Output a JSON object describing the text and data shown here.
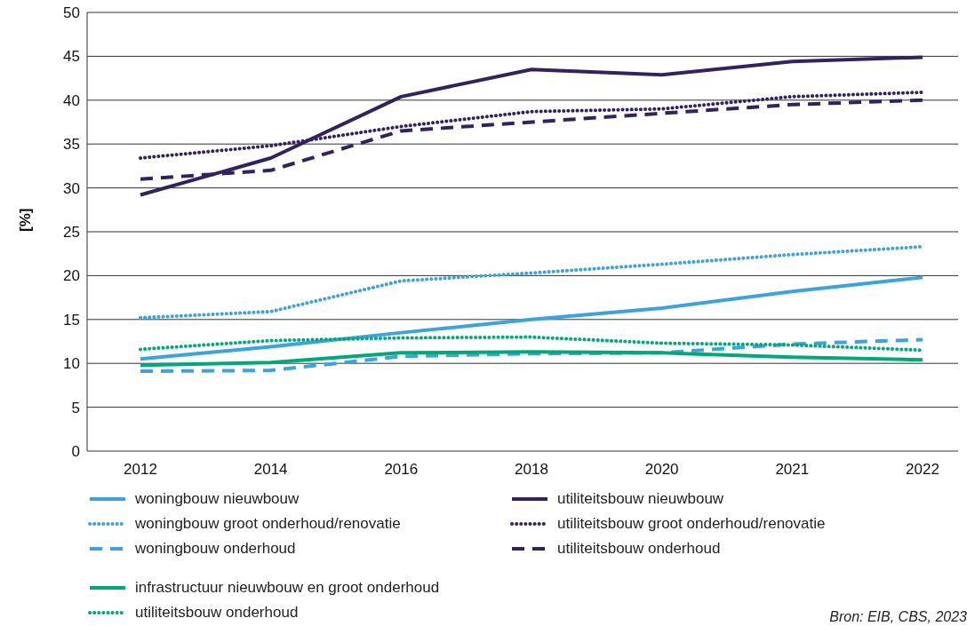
{
  "chart_data": {
    "type": "line",
    "ylabel": "[%]",
    "categories": [
      "2012",
      "2014",
      "2016",
      "2018",
      "2020",
      "2021",
      "2022"
    ],
    "ylim": [
      0,
      50
    ],
    "yticks": [
      0,
      5,
      10,
      15,
      20,
      25,
      30,
      35,
      40,
      45,
      50
    ],
    "grid": "y",
    "legend": "bottom",
    "marker": "none",
    "series": [
      {
        "name": "woningbouw nieuwbouw",
        "color": "#3ca3dc",
        "line_style": "solid",
        "values": [
          10.5,
          11.9,
          13.5,
          15,
          16.3,
          18.2,
          19.8
        ]
      },
      {
        "name": "utiliteitsbouw nieuwbouw",
        "color": "#33225e",
        "line_style": "solid",
        "values": [
          29.2,
          33.4,
          40.4,
          43.5,
          42.9,
          44.4,
          44.9
        ]
      },
      {
        "name": "woningbouw groot onderhoud/renovatie",
        "color": "#3ca3dc",
        "line_style": "dotted",
        "values": [
          15.2,
          15.9,
          19.4,
          20.3,
          21.3,
          22.4,
          23.3
        ]
      },
      {
        "name": "utiliteitsbouw groot onderhoud/renovatie",
        "color": "#33225e",
        "line_style": "dotted",
        "values": [
          33.4,
          34.8,
          37,
          38.7,
          39,
          40.4,
          40.9
        ]
      },
      {
        "name": "woningbouw onderhoud",
        "color": "#3ca3dc",
        "line_style": "dashed",
        "values": [
          9.1,
          9.2,
          10.8,
          11.1,
          11.2,
          12.2,
          12.7
        ]
      },
      {
        "name": "utiliteitsbouw onderhoud",
        "color": "#33225e",
        "line_style": "dashed",
        "values": [
          31,
          32,
          36.5,
          37.5,
          38.5,
          39.5,
          40
        ]
      },
      {
        "name": "infrastructuur nieuwbouw en groot onderhoud",
        "color": "#00a97a",
        "line_style": "solid",
        "values": [
          9.8,
          10.1,
          11.2,
          11.3,
          11.2,
          10.7,
          10.4
        ]
      },
      {
        "name": "utiliteitsbouw onderhoud",
        "color": "#00a97a",
        "line_style": "dotted",
        "values": [
          11.6,
          12.6,
          12.9,
          13,
          12.3,
          12.1,
          11.5
        ]
      }
    ],
    "annotations": [
      "Bron: EIB, CBS, 2023"
    ]
  }
}
